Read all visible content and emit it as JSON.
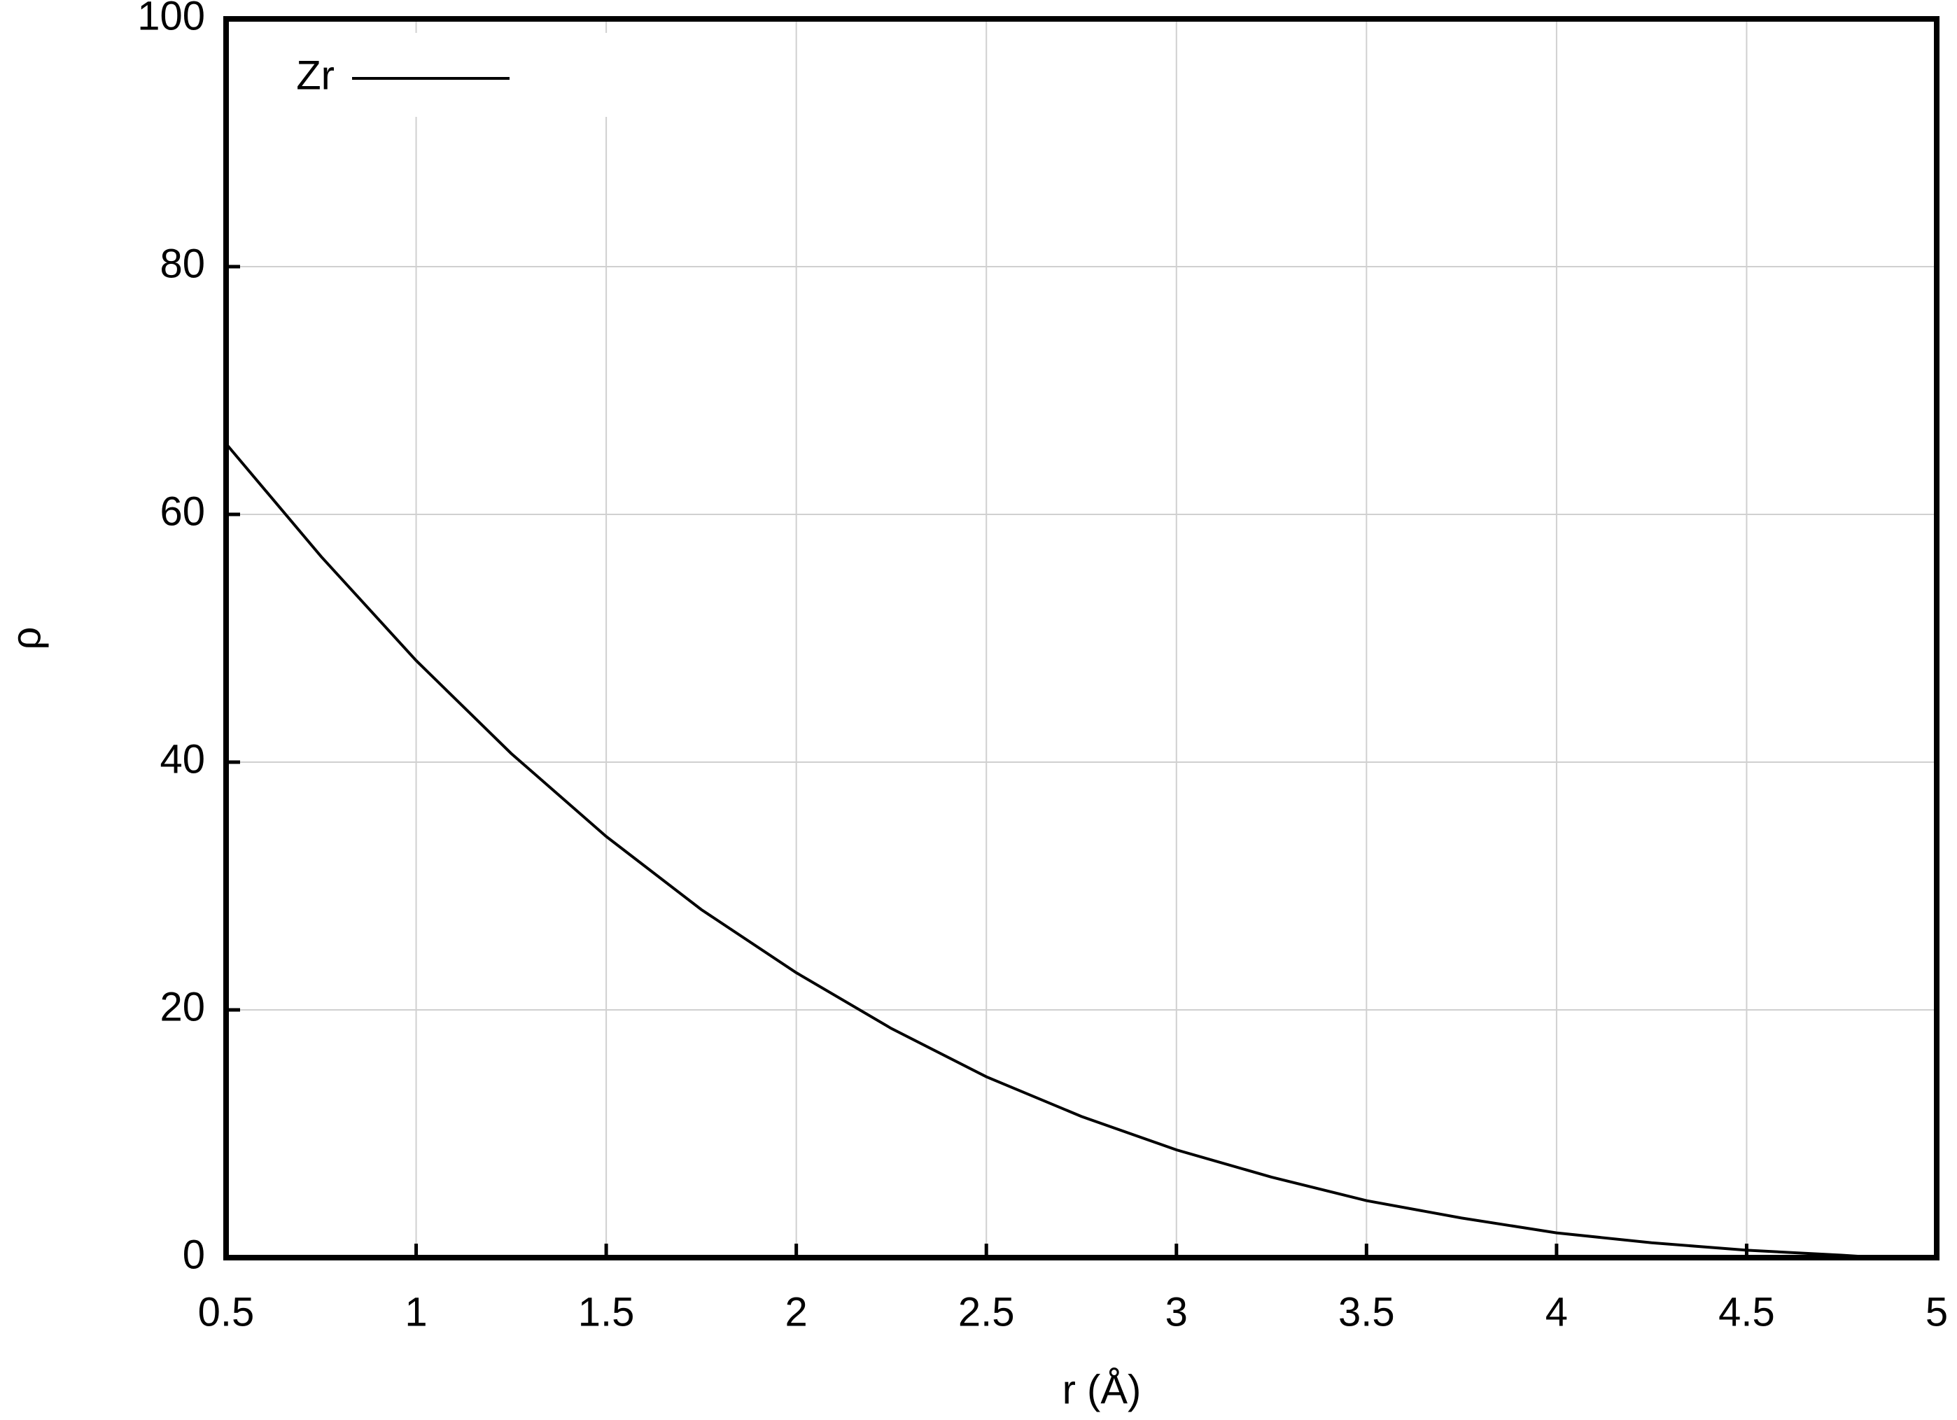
{
  "chart_data": {
    "type": "line",
    "x_label": "r (Å)",
    "y_label": "ρ",
    "x": [
      0.5,
      0.75,
      1,
      1.25,
      1.5,
      1.75,
      2,
      2.25,
      2.5,
      2.75,
      3,
      3.25,
      3.5,
      3.75,
      4,
      4.25,
      4.5,
      4.75,
      4.85
    ],
    "series": [
      {
        "name": "Zr",
        "color": "#000000",
        "values": [
          65.7,
          56.6,
          48.2,
          40.7,
          34.0,
          28.1,
          23.0,
          18.5,
          14.6,
          11.4,
          8.7,
          6.5,
          4.6,
          3.2,
          2.0,
          1.2,
          0.6,
          0.2,
          0
        ]
      }
    ],
    "xlim": [
      0.5,
      5
    ],
    "xticks": [
      0.5,
      1,
      1.5,
      2,
      2.5,
      3,
      3.5,
      4,
      4.5,
      5
    ],
    "ylim": [
      0,
      100
    ],
    "yticks": [
      0,
      20,
      40,
      60,
      80,
      100
    ],
    "grid": true,
    "legend": "top-left"
  }
}
